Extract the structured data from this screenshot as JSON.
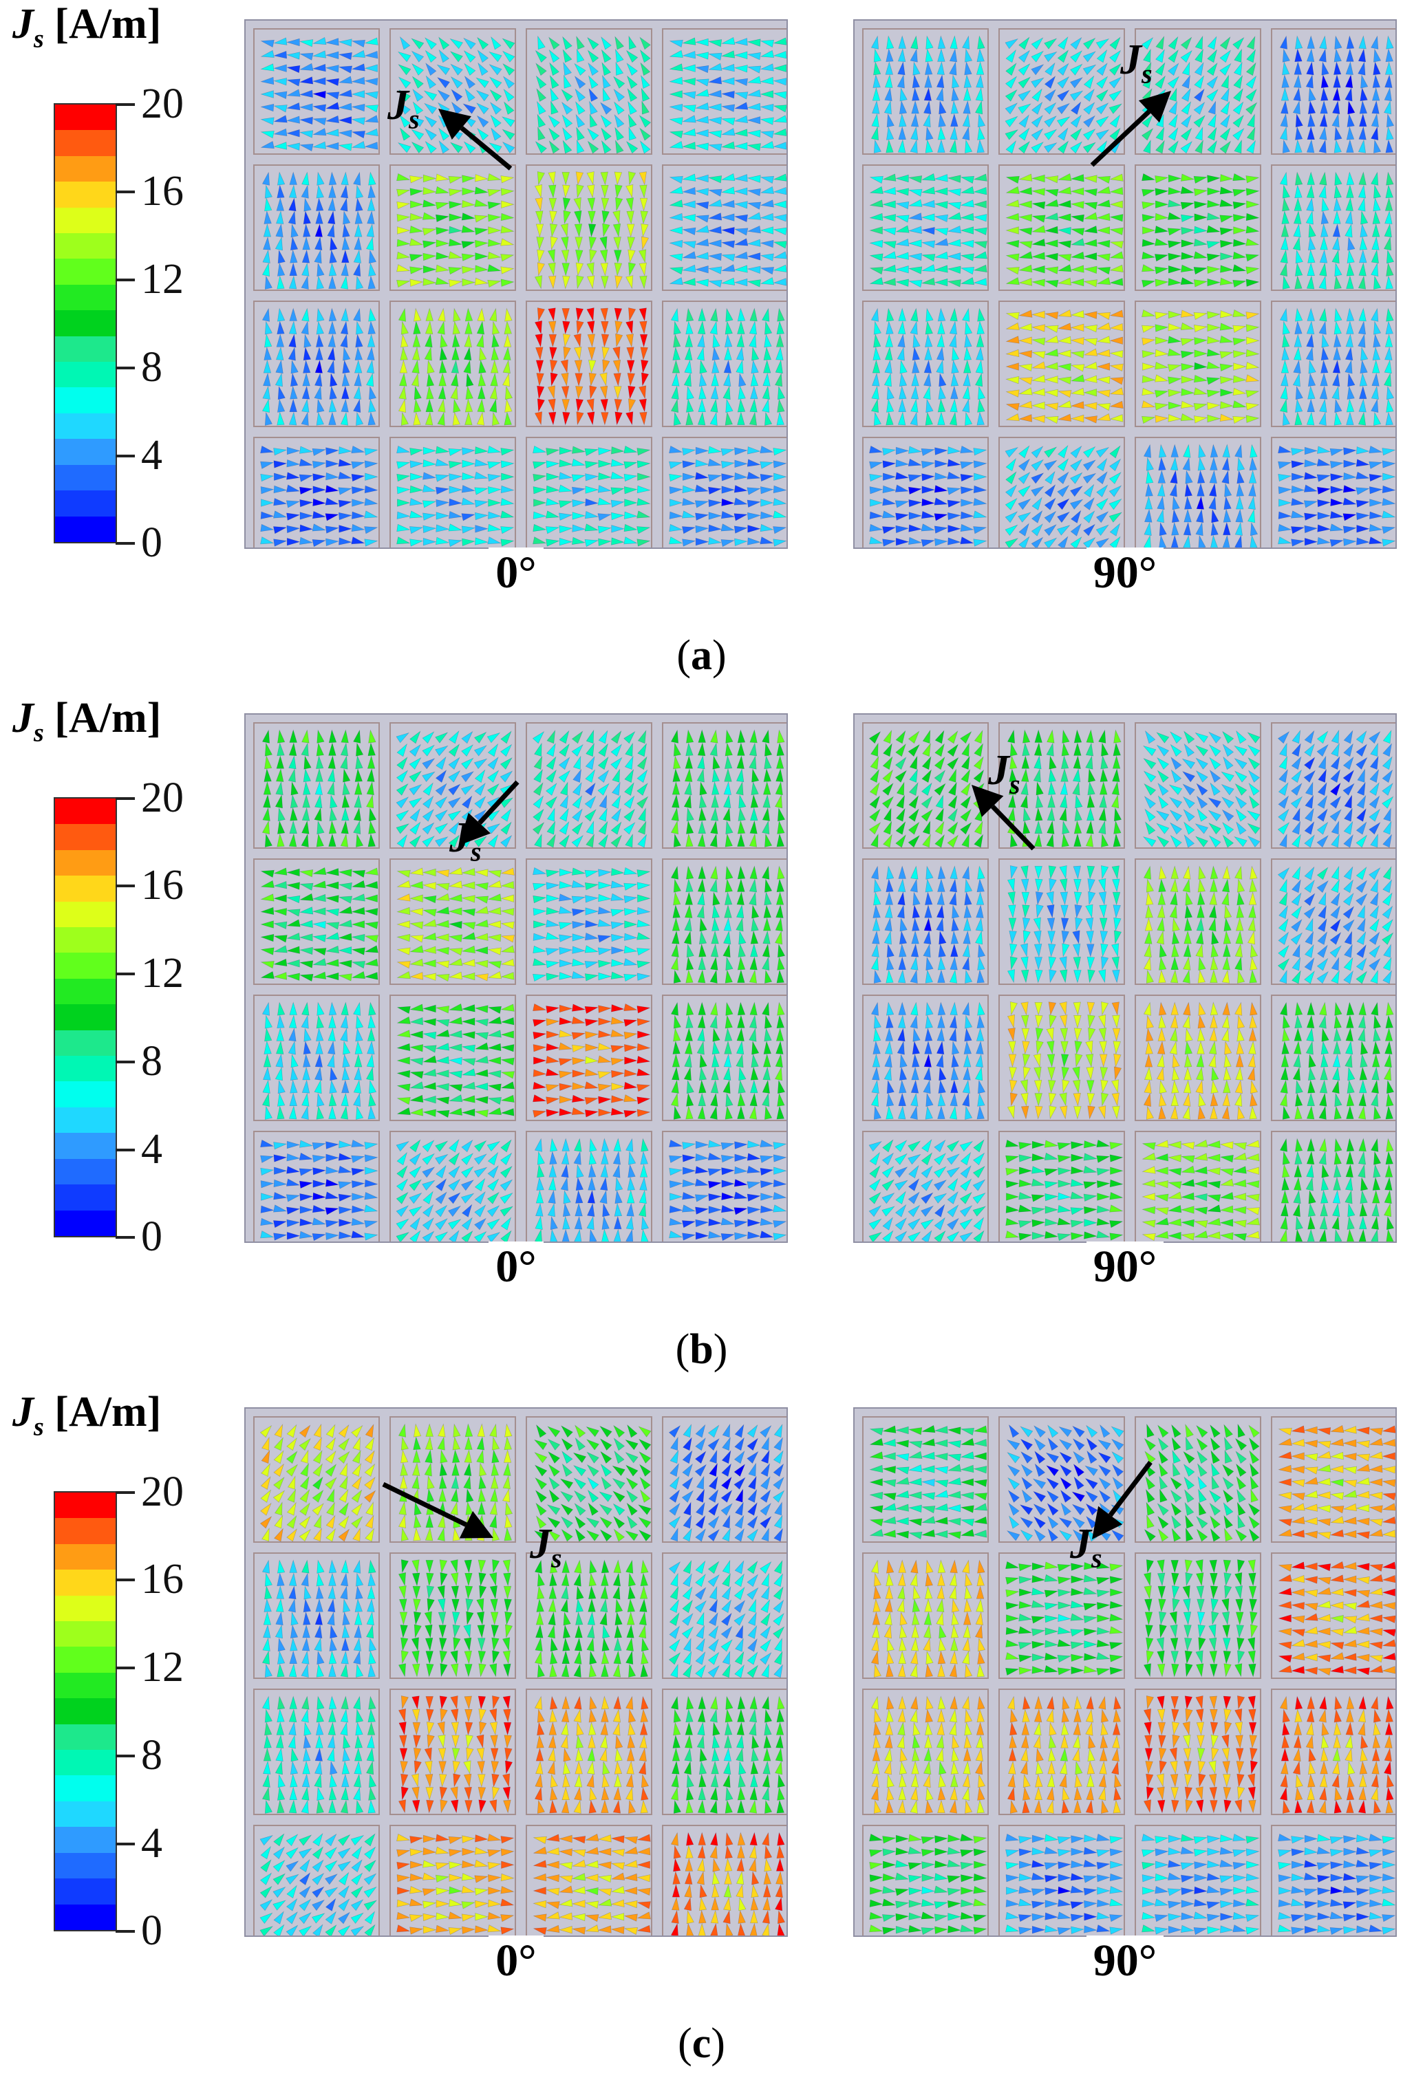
{
  "colormap": [
    "#0000ff",
    "#0f3bff",
    "#1f6bff",
    "#2f9bff",
    "#1fd8ff",
    "#00ffee",
    "#00f7b4",
    "#1de88c",
    "#00d21e",
    "#22ea22",
    "#61ff1c",
    "#9eff1c",
    "#ddff19",
    "#ffd71a",
    "#ff9c14",
    "#ff5a10",
    "#ff0000"
  ],
  "shared": {
    "colorbar_title_symbol": "J",
    "colorbar_title_sub": "s",
    "colorbar_unit": "[A/m]",
    "colorbar_ticks": [
      "20",
      "16",
      "12",
      "8",
      "4",
      "0"
    ],
    "colorbar_range": [
      0,
      20
    ],
    "arrow_symbol": "J",
    "arrow_sub": "s"
  },
  "panels": [
    {
      "caption_letter": "a",
      "left_angle": "0°",
      "right_angle": "90°",
      "left_field": [
        [
          3,
          5,
          6,
          5
        ],
        [
          3,
          12,
          13,
          4
        ],
        [
          3,
          12,
          18,
          6
        ],
        [
          2,
          5,
          6,
          3
        ]
      ],
      "right_field": [
        [
          4,
          5,
          6,
          2
        ],
        [
          6,
          11,
          10,
          6
        ],
        [
          5,
          15,
          13,
          4
        ],
        [
          2,
          4,
          3,
          2
        ]
      ]
    },
    {
      "caption_letter": "b",
      "left_angle": "0°",
      "right_angle": "90°",
      "left_field": [
        [
          9,
          5,
          6,
          9
        ],
        [
          9,
          13,
          5,
          9
        ],
        [
          5,
          9,
          18,
          9
        ],
        [
          2,
          5,
          4,
          2
        ]
      ],
      "right_field": [
        [
          10,
          9,
          5,
          3
        ],
        [
          3,
          5,
          12,
          4
        ],
        [
          3,
          14,
          15,
          9
        ],
        [
          5,
          9,
          12,
          9
        ]
      ]
    },
    {
      "caption_letter": "c",
      "left_angle": "0°",
      "right_angle": "90°",
      "left_field": [
        [
          14,
          12,
          9,
          2
        ],
        [
          4,
          10,
          10,
          5
        ],
        [
          6,
          17,
          16,
          9
        ],
        [
          5,
          16,
          16,
          17
        ]
      ],
      "right_field": [
        [
          8,
          2,
          9,
          16
        ],
        [
          15,
          9,
          9,
          17
        ],
        [
          15,
          16,
          17,
          17
        ],
        [
          9,
          3,
          4,
          3
        ]
      ]
    }
  ]
}
